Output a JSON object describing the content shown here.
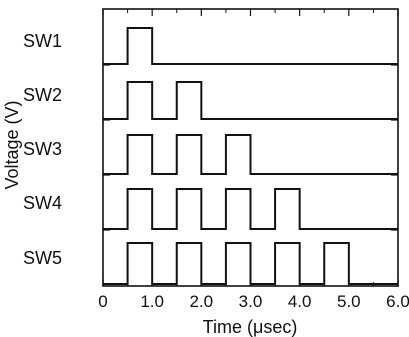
{
  "chart_data": {
    "type": "line",
    "title": "",
    "xlabel": "Time (μsec)",
    "ylabel": "Voltage (V)",
    "xlim": [
      0,
      6
    ],
    "xticks": [
      0,
      1,
      2,
      3,
      4,
      5,
      6
    ],
    "xtick_labels": [
      "0",
      "1.0",
      "2.0",
      "3.0",
      "4.0",
      "5.0",
      "6.0"
    ],
    "grid": false,
    "series": [
      {
        "name": "SW1",
        "pulses": [
          [
            0.5,
            1.0
          ]
        ]
      },
      {
        "name": "SW2",
        "pulses": [
          [
            0.5,
            1.0
          ],
          [
            1.5,
            2.0
          ]
        ]
      },
      {
        "name": "SW3",
        "pulses": [
          [
            0.5,
            1.0
          ],
          [
            1.5,
            2.0
          ],
          [
            2.5,
            3.0
          ]
        ]
      },
      {
        "name": "SW4",
        "pulses": [
          [
            0.5,
            1.0
          ],
          [
            1.5,
            2.0
          ],
          [
            2.5,
            3.0
          ],
          [
            3.5,
            4.0
          ]
        ]
      },
      {
        "name": "SW5",
        "pulses": [
          [
            0.5,
            1.0
          ],
          [
            1.5,
            2.0
          ],
          [
            2.5,
            3.0
          ],
          [
            3.5,
            4.0
          ],
          [
            4.5,
            5.0
          ]
        ]
      }
    ]
  },
  "colors": {
    "axis": "#111111",
    "signal": "#111111",
    "background": "#ffffff"
  }
}
